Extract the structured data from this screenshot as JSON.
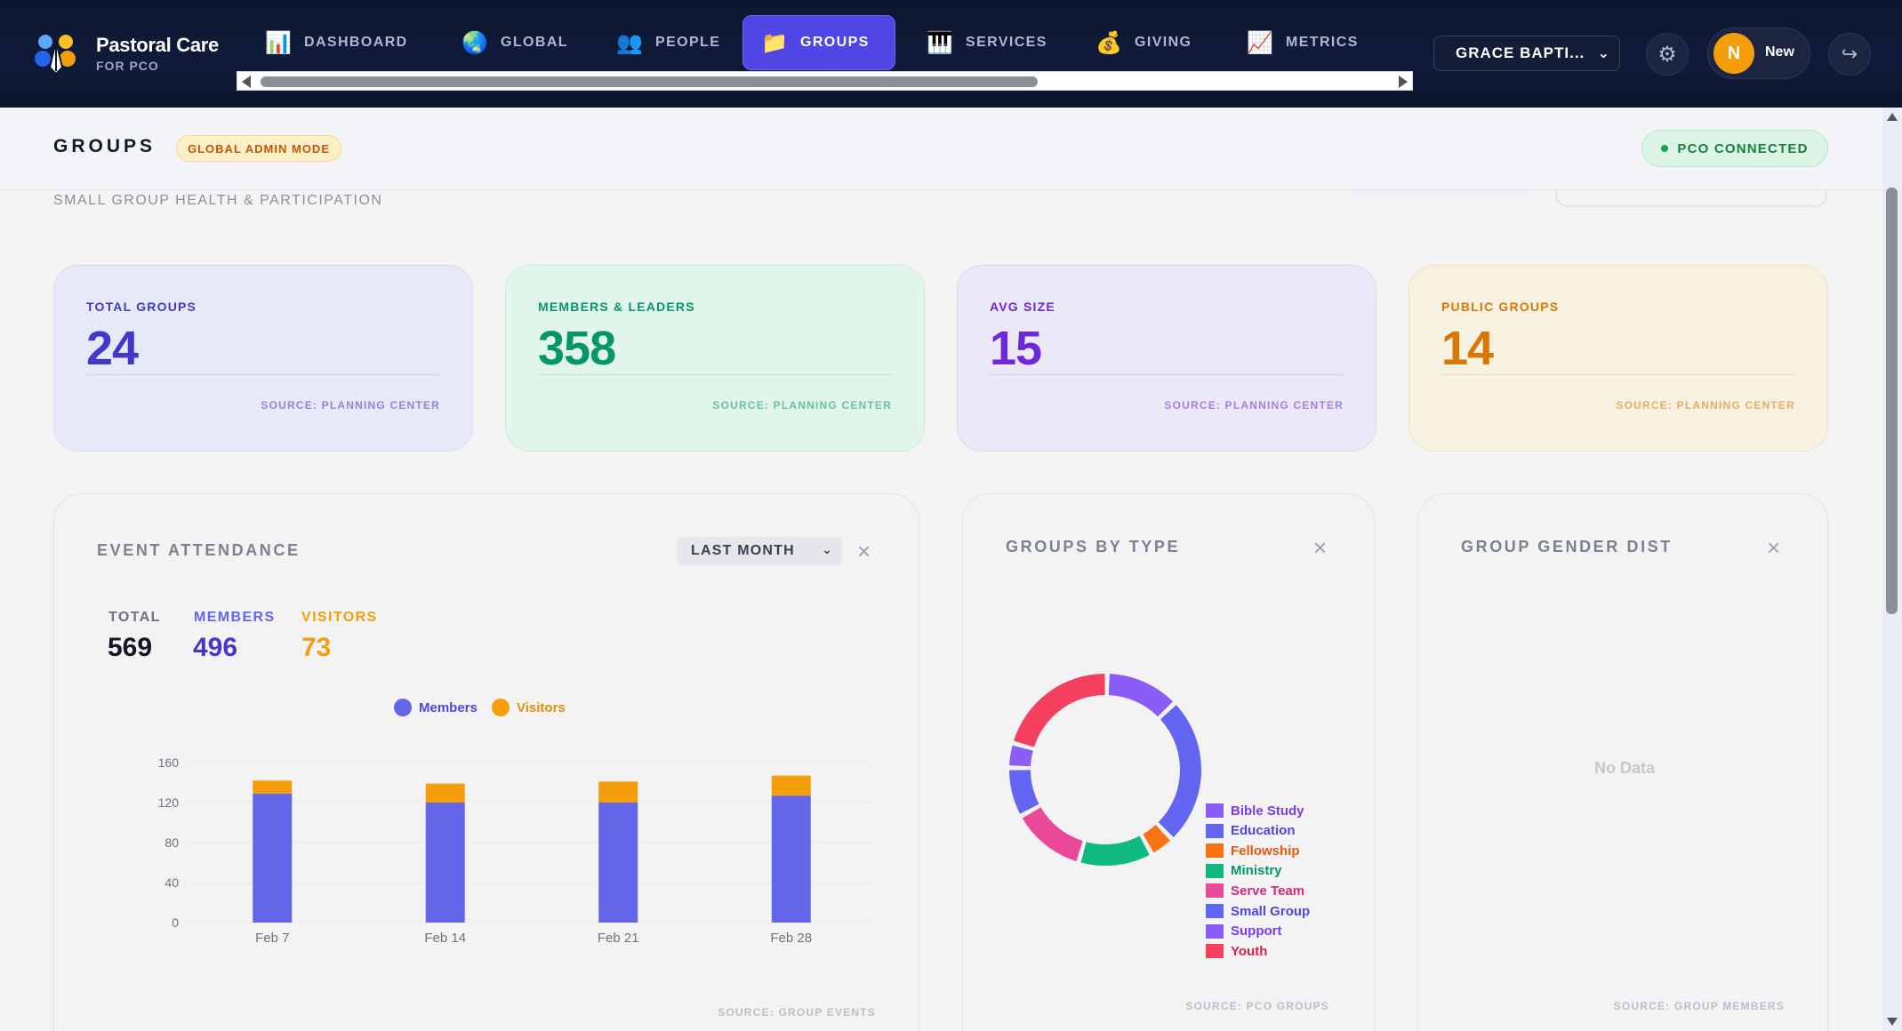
{
  "brand": {
    "title": "Pastoral Care",
    "subtitle": "FOR PCO"
  },
  "nav": {
    "tabs": [
      {
        "label": "DASHBOARD",
        "icon": "bar-chart-icon",
        "glyph": "📊"
      },
      {
        "label": "GLOBAL",
        "icon": "globe-icon",
        "glyph": "🌏"
      },
      {
        "label": "PEOPLE",
        "icon": "people-icon",
        "glyph": "👥"
      },
      {
        "label": "GROUPS",
        "icon": "folder-icon",
        "glyph": "📁",
        "active": true
      },
      {
        "label": "SERVICES",
        "icon": "piano-icon",
        "glyph": "🎹"
      },
      {
        "label": "GIVING",
        "icon": "money-bag-icon",
        "glyph": "💰"
      },
      {
        "label": "METRICS",
        "icon": "trend-chart-icon",
        "glyph": "📈"
      }
    ]
  },
  "church_select": {
    "value": "GRACE BAPTI..."
  },
  "user": {
    "initial": "N",
    "name": "New"
  },
  "page": {
    "title": "GROUPS",
    "admin_badge": "GLOBAL ADMIN MODE",
    "connection": "PCO CONNECTED",
    "subtitle": "SMALL GROUP HEALTH & PARTICIPATION"
  },
  "stats": [
    {
      "label": "TOTAL GROUPS",
      "value": "24",
      "source": "SOURCE: PLANNING CENTER",
      "accent": "#4338ca",
      "bg": "#e6e9f7",
      "border": "#d7dcf2"
    },
    {
      "label": "MEMBERS & LEADERS",
      "value": "358",
      "source": "SOURCE: PLANNING CENTER",
      "accent": "#059669",
      "bg": "#e2f5ea",
      "border": "#c9ecd7"
    },
    {
      "label": "AVG SIZE",
      "value": "15",
      "source": "SOURCE: PLANNING CENTER",
      "accent": "#6d28d9",
      "bg": "#ebe8f7",
      "border": "#dcd6f2"
    },
    {
      "label": "PUBLIC GROUPS",
      "value": "14",
      "source": "SOURCE: PLANNING CENTER",
      "accent": "#d97706",
      "bg": "#f7f1e1",
      "border": "#efe3c2"
    }
  ],
  "attendance": {
    "title": "EVENT ATTENDANCE",
    "range": "LAST MONTH",
    "totals": [
      {
        "label": "TOTAL",
        "value": "569",
        "color": "#111827",
        "label_color": "#6b7280"
      },
      {
        "label": "MEMBERS",
        "value": "496",
        "color": "#4338ca",
        "label_color": "#6366f1"
      },
      {
        "label": "VISITORS",
        "value": "73",
        "color": "#f59e0b",
        "label_color": "#f59e0b"
      }
    ],
    "legend": [
      {
        "name": "Members",
        "color": "#6366e8"
      },
      {
        "name": "Visitors",
        "color": "#f59e0b"
      }
    ],
    "source": "SOURCE: GROUP EVENTS"
  },
  "groups_by_type": {
    "title": "GROUPS BY TYPE",
    "source": "SOURCE: PCO GROUPS"
  },
  "gender": {
    "title": "GROUP GENDER DIST",
    "empty": "No Data",
    "source": "SOURCE: GROUP MEMBERS"
  },
  "chart_data": [
    {
      "type": "bar",
      "stacked": true,
      "categories": [
        "Feb 7",
        "Feb 14",
        "Feb 21",
        "Feb 28"
      ],
      "series": [
        {
          "name": "Members",
          "color": "#6366e8",
          "values": [
            129,
            120,
            120,
            127
          ]
        },
        {
          "name": "Visitors",
          "color": "#f59e0b",
          "values": [
            13,
            19,
            21,
            20
          ]
        }
      ],
      "ylim": [
        0,
        160
      ],
      "yticks": [
        0,
        40,
        80,
        120,
        160
      ],
      "grid": true,
      "legend": "top"
    },
    {
      "type": "pie",
      "donut": true,
      "legend": "right",
      "slices": [
        {
          "label": "Bible Study",
          "value": 3,
          "color": "#8b5cf6"
        },
        {
          "label": "Education",
          "value": 6,
          "color": "#6366f1"
        },
        {
          "label": "Fellowship",
          "value": 1,
          "color": "#f97316"
        },
        {
          "label": "Ministry",
          "value": 3,
          "color": "#10b981"
        },
        {
          "label": "Serve Team",
          "value": 3,
          "color": "#ec4899"
        },
        {
          "label": "Small Group",
          "value": 2,
          "color": "#6366f1"
        },
        {
          "label": "Support",
          "value": 1,
          "color": "#8b5cf6"
        },
        {
          "label": "Youth",
          "value": 5,
          "color": "#f43f5e"
        }
      ]
    }
  ]
}
